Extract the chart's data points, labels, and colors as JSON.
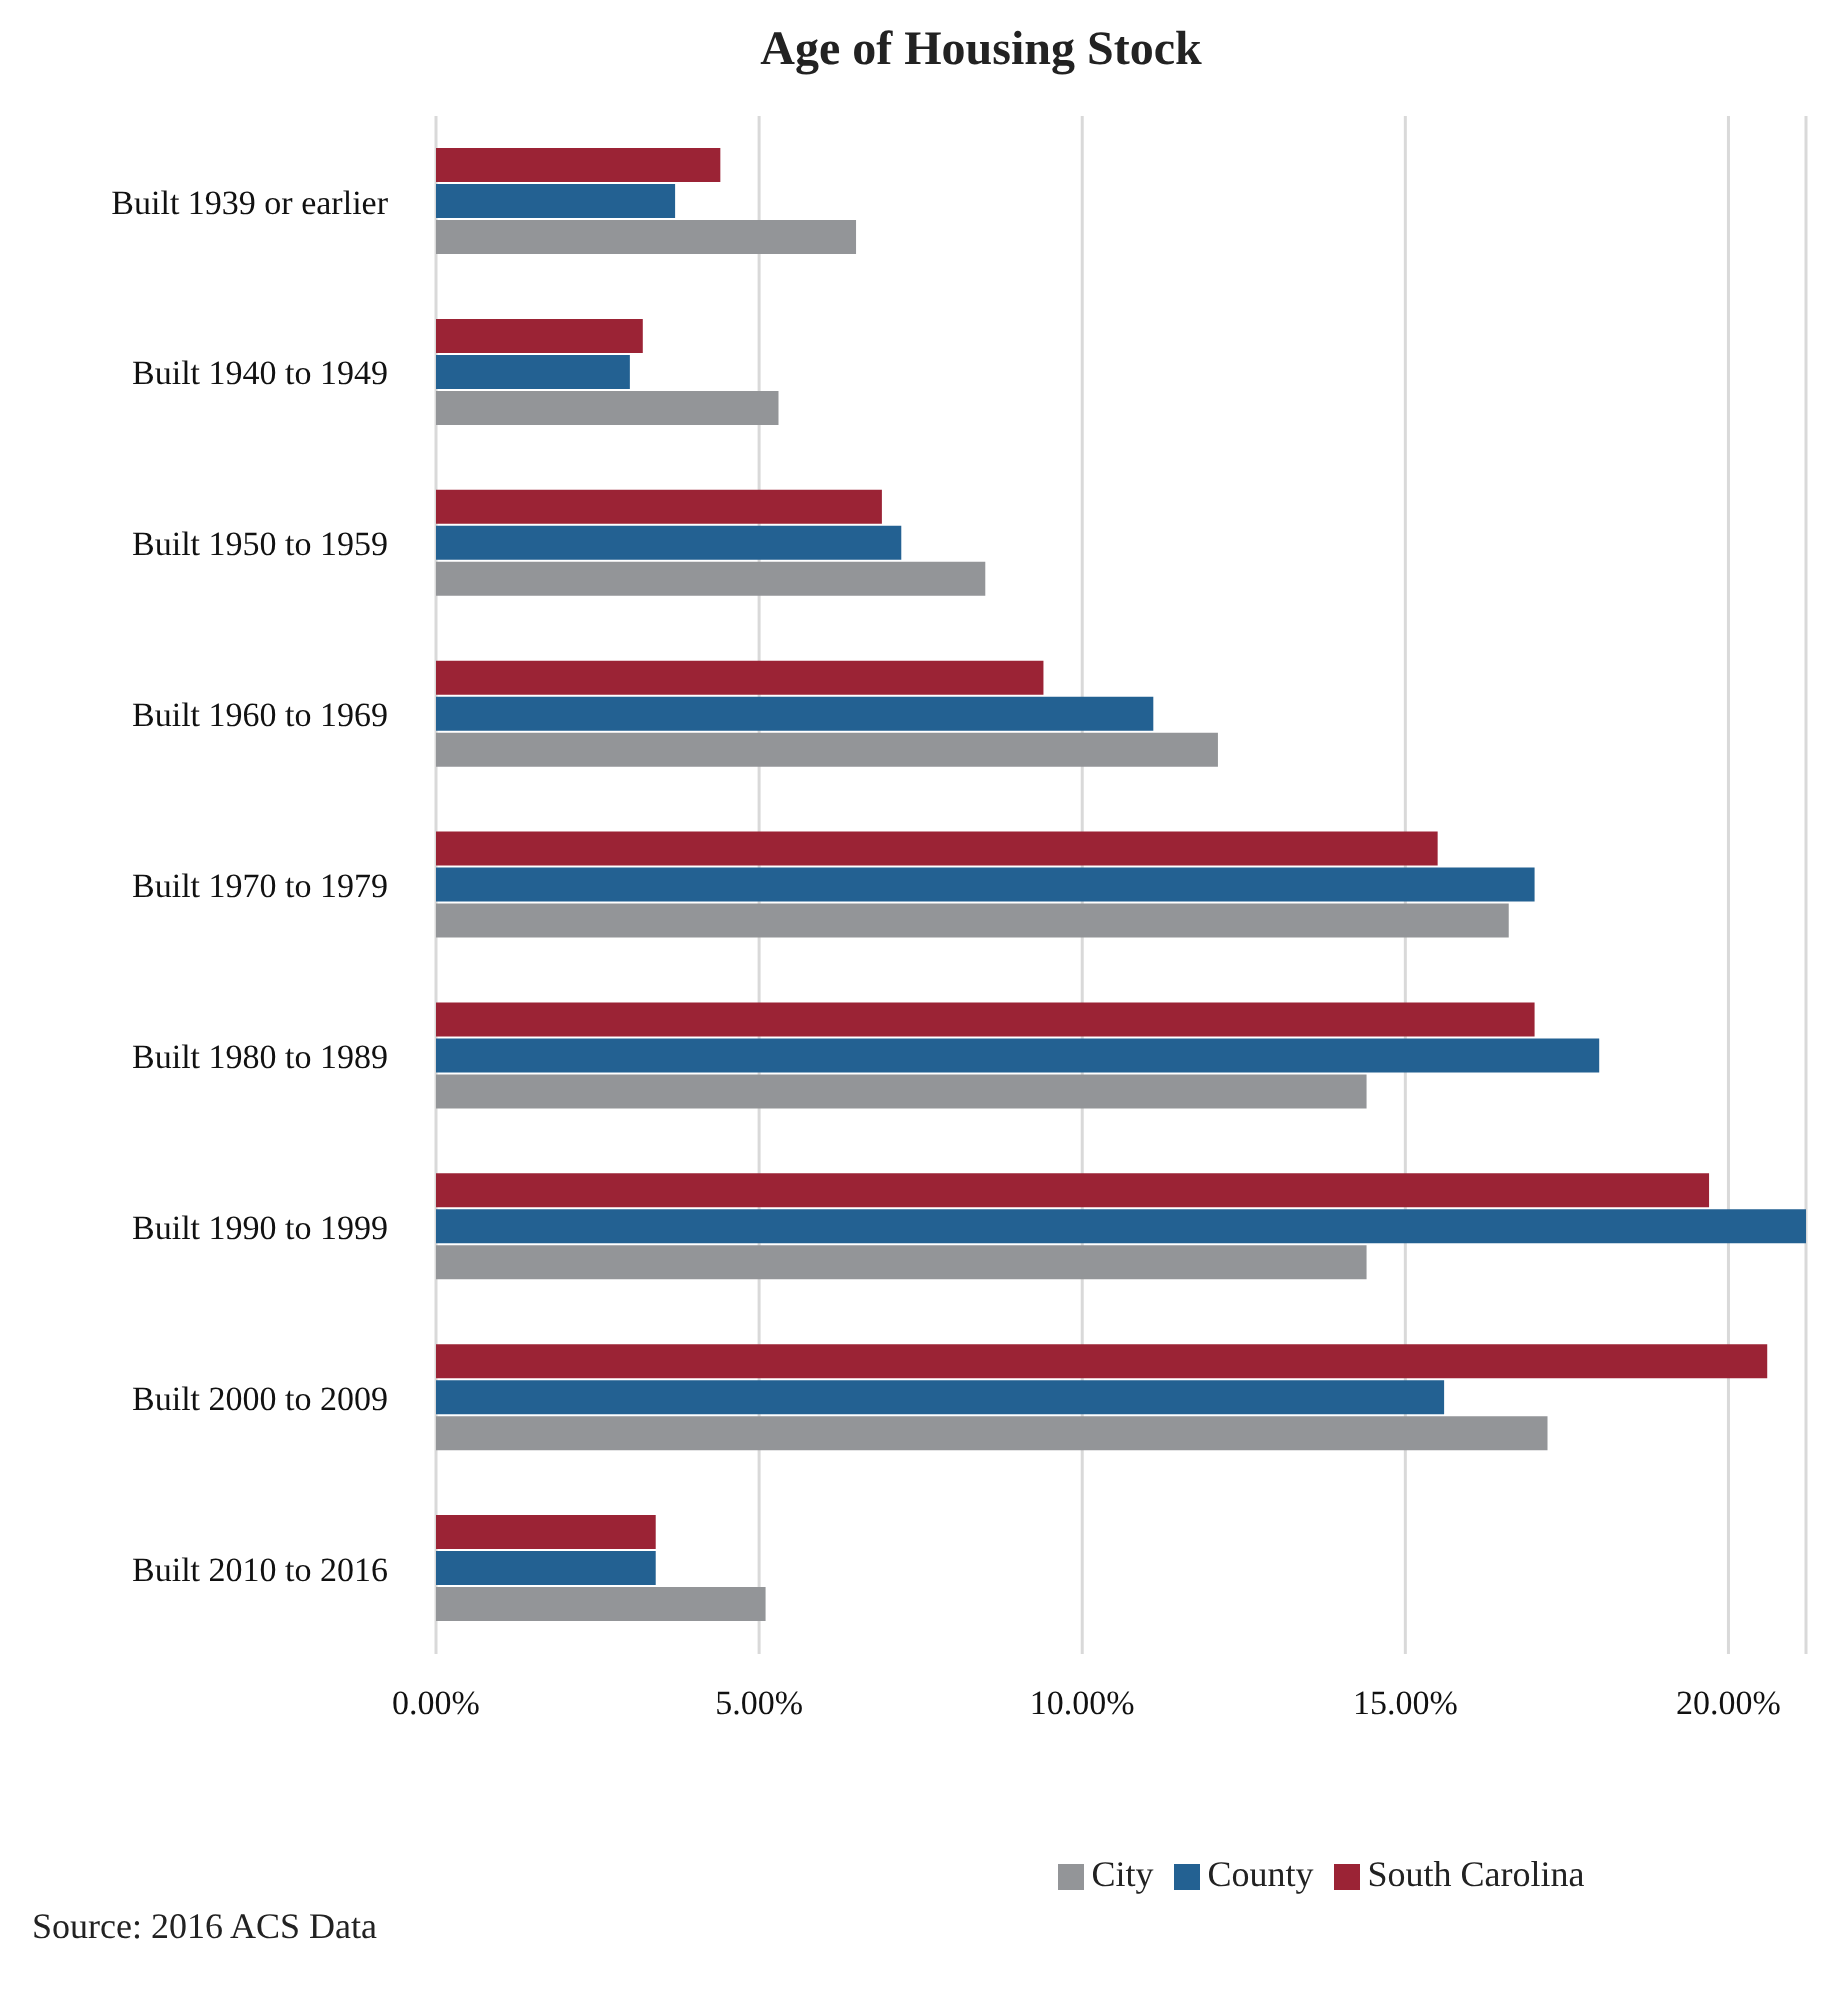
{
  "chart_data": {
    "type": "bar",
    "orientation": "horizontal",
    "title": "Age of Housing Stock",
    "categories": [
      "Built 1939 or earlier",
      "Built 1940 to 1949",
      "Built 1950 to 1959",
      "Built 1960 to 1969",
      "Built 1970 to 1979",
      "Built 1980 to 1989",
      "Built 1990 to 1999",
      "Built 2000 to 2009",
      "Built 2010 to 2016"
    ],
    "series": [
      {
        "name": "South Carolina",
        "color": "#9b2335",
        "values": [
          4.4,
          3.2,
          6.9,
          9.4,
          15.5,
          17.0,
          19.7,
          20.6,
          3.4
        ]
      },
      {
        "name": "County",
        "color": "#236192",
        "values": [
          3.7,
          3.0,
          7.2,
          11.1,
          17.0,
          18.0,
          21.2,
          15.6,
          3.4
        ]
      },
      {
        "name": "City",
        "color": "#939598",
        "values": [
          6.5,
          5.3,
          8.5,
          12.1,
          16.6,
          14.4,
          14.4,
          17.2,
          5.1
        ]
      }
    ],
    "xlim": [
      0,
      21.2
    ],
    "xticks": [
      {
        "value": 0,
        "label": "0.00%"
      },
      {
        "value": 5,
        "label": "5.00%"
      },
      {
        "value": 10,
        "label": "10.00%"
      },
      {
        "value": 15,
        "label": "15.00%"
      },
      {
        "value": 20,
        "label": "20.00%"
      }
    ],
    "grid": "x",
    "legend": "bottom",
    "annotations": [
      "Source: 2016 ACS Data"
    ]
  }
}
